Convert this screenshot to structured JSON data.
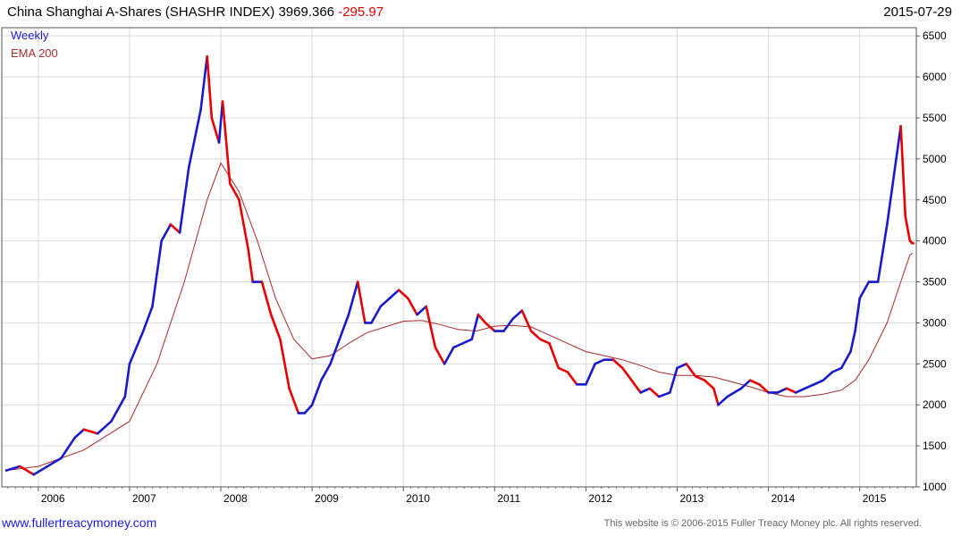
{
  "header": {
    "title": "China Shanghai A-Shares (SHASHR INDEX) 3969.366",
    "change": "-295.97",
    "date": "2015-07-29"
  },
  "legend": {
    "series1": "Weekly",
    "series2": "EMA 200"
  },
  "footer": {
    "link": "www.fullertreacymoney.com",
    "copyright": "This website is © 2006-2015 Fuller Treacy Money plc. All rights reserved."
  },
  "colors": {
    "up": "#1a1acc",
    "down": "#e60000",
    "ema": "#a52a2a",
    "grid": "#d9d9d9"
  },
  "chart_data": {
    "type": "line",
    "title": "China Shanghai A-Shares (SHASHR INDEX)",
    "xlabel": "",
    "ylabel": "",
    "xlim": [
      2005.6,
      2015.62
    ],
    "ylim": [
      1000,
      6600
    ],
    "y_ticks": [
      1000,
      1500,
      2000,
      2500,
      3000,
      3500,
      4000,
      4500,
      5000,
      5500,
      6000,
      6500
    ],
    "y_tick_labels": [
      "1000",
      "1500",
      "2000",
      "2500",
      "3000",
      "3500",
      "4000",
      "4500",
      "5000",
      "5500",
      "6000",
      "6500"
    ],
    "x_ticks": [
      2006,
      2007,
      2008,
      2009,
      2010,
      2011,
      2012,
      2013,
      2014,
      2015
    ],
    "x_tick_labels": [
      "2006",
      "2007",
      "2008",
      "2009",
      "2010",
      "2011",
      "2012",
      "2013",
      "2014",
      "2015"
    ],
    "grid": true,
    "legend_position": "top-left",
    "series": [
      {
        "name": "Weekly",
        "style": "price bars (blue up, red down)",
        "x": [
          2005.65,
          2005.8,
          2005.95,
          2006.1,
          2006.25,
          2006.4,
          2006.5,
          2006.65,
          2006.8,
          2006.95,
          2007.0,
          2007.15,
          2007.25,
          2007.35,
          2007.45,
          2007.55,
          2007.65,
          2007.78,
          2007.85,
          2007.9,
          2007.98,
          2008.02,
          2008.1,
          2008.2,
          2008.3,
          2008.35,
          2008.45,
          2008.55,
          2008.65,
          2008.75,
          2008.85,
          2008.92,
          2009.0,
          2009.1,
          2009.2,
          2009.3,
          2009.4,
          2009.5,
          2009.58,
          2009.65,
          2009.75,
          2009.85,
          2009.95,
          2010.05,
          2010.15,
          2010.25,
          2010.35,
          2010.45,
          2010.55,
          2010.65,
          2010.75,
          2010.82,
          2010.9,
          2011.0,
          2011.1,
          2011.2,
          2011.3,
          2011.4,
          2011.5,
          2011.6,
          2011.7,
          2011.8,
          2011.9,
          2012.0,
          2012.1,
          2012.2,
          2012.3,
          2012.4,
          2012.5,
          2012.6,
          2012.7,
          2012.8,
          2012.92,
          2013.0,
          2013.1,
          2013.2,
          2013.3,
          2013.4,
          2013.45,
          2013.55,
          2013.7,
          2013.8,
          2013.9,
          2014.0,
          2014.1,
          2014.2,
          2014.3,
          2014.4,
          2014.5,
          2014.6,
          2014.7,
          2014.8,
          2014.9,
          2014.95,
          2015.0,
          2015.1,
          2015.2,
          2015.3,
          2015.4,
          2015.45,
          2015.5,
          2015.55,
          2015.58
        ],
        "values": [
          1200,
          1250,
          1150,
          1250,
          1350,
          1600,
          1700,
          1650,
          1800,
          2100,
          2500,
          2900,
          3200,
          4000,
          4200,
          4100,
          4900,
          5600,
          6250,
          5500,
          5200,
          5700,
          4700,
          4500,
          3900,
          3500,
          3500,
          3100,
          2800,
          2200,
          1900,
          1900,
          2000,
          2300,
          2500,
          2800,
          3100,
          3500,
          3000,
          3000,
          3200,
          3300,
          3400,
          3300,
          3100,
          3200,
          2700,
          2500,
          2700,
          2750,
          2800,
          3100,
          3000,
          2900,
          2900,
          3050,
          3150,
          2900,
          2800,
          2750,
          2450,
          2400,
          2250,
          2250,
          2500,
          2550,
          2550,
          2450,
          2300,
          2150,
          2200,
          2100,
          2150,
          2450,
          2500,
          2350,
          2300,
          2200,
          2000,
          2100,
          2200,
          2300,
          2250,
          2150,
          2150,
          2200,
          2150,
          2200,
          2250,
          2300,
          2400,
          2450,
          2650,
          2900,
          3300,
          3500,
          3500,
          4200,
          5000,
          5400,
          4300,
          4000,
          3970
        ]
      },
      {
        "name": "EMA 200",
        "style": "line",
        "x": [
          2005.65,
          2006.0,
          2006.5,
          2007.0,
          2007.3,
          2007.6,
          2007.85,
          2008.0,
          2008.2,
          2008.4,
          2008.6,
          2008.8,
          2009.0,
          2009.2,
          2009.4,
          2009.6,
          2009.8,
          2010.0,
          2010.2,
          2010.4,
          2010.6,
          2010.8,
          2011.0,
          2011.2,
          2011.4,
          2011.6,
          2011.8,
          2012.0,
          2012.2,
          2012.4,
          2012.6,
          2012.8,
          2013.0,
          2013.2,
          2013.4,
          2013.6,
          2013.8,
          2014.0,
          2014.2,
          2014.4,
          2014.6,
          2014.8,
          2014.95,
          2015.1,
          2015.3,
          2015.45,
          2015.55,
          2015.58
        ],
        "values": [
          1200,
          1250,
          1450,
          1800,
          2500,
          3500,
          4500,
          4950,
          4600,
          4000,
          3300,
          2800,
          2560,
          2600,
          2750,
          2880,
          2950,
          3020,
          3030,
          2980,
          2920,
          2900,
          2960,
          2970,
          2950,
          2850,
          2750,
          2650,
          2600,
          2550,
          2480,
          2400,
          2360,
          2360,
          2340,
          2280,
          2220,
          2150,
          2100,
          2100,
          2130,
          2180,
          2300,
          2550,
          3000,
          3500,
          3830,
          3850
        ]
      }
    ]
  }
}
